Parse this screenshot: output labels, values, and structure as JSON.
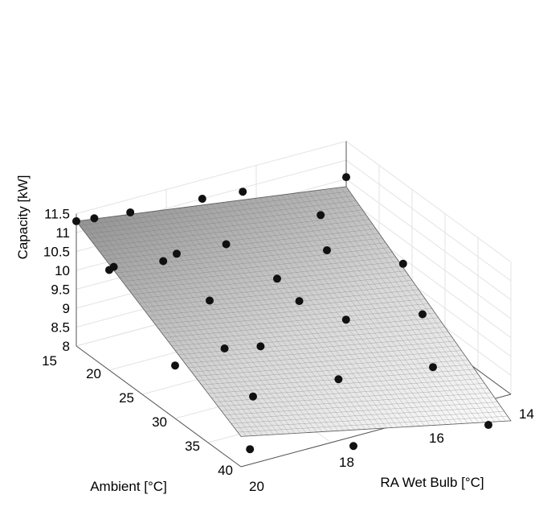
{
  "chart_data": {
    "type": "surface3d",
    "title": "",
    "zlabel": "Capacity [kW]",
    "ylabel": "Ambient [°C]",
    "xlabel": "RA Wet Bulb [°C]",
    "xlim": [
      14,
      20
    ],
    "ylim": [
      15,
      40
    ],
    "zlim": [
      8,
      11.5
    ],
    "xticks": [
      "14",
      "16",
      "18",
      "20"
    ],
    "yticks": [
      "15",
      "20",
      "25",
      "30",
      "35",
      "40"
    ],
    "zticks": [
      "8",
      "8.5",
      "9",
      "9.5",
      "10",
      "10.5",
      "11",
      "11.5"
    ],
    "grid": true,
    "surface": {
      "description_free": true,
      "corners": [
        {
          "wb": 14,
          "amb": 15,
          "capacity": 10.3
        },
        {
          "wb": 20,
          "amb": 15,
          "capacity": 11.3
        },
        {
          "wb": 14,
          "amb": 40,
          "capacity": 7.3
        },
        {
          "wb": 20,
          "amb": 40,
          "capacity": 8.8
        }
      ],
      "color_high": "#8a8a8a",
      "color_low": "#ffffff"
    },
    "points": [
      {
        "wb": 20.0,
        "amb": 15.0,
        "capacity": 11.3
      },
      {
        "wb": 19.6,
        "amb": 15.0,
        "capacity": 11.25
      },
      {
        "wb": 19.9,
        "amb": 20.0,
        "capacity": 10.7
      },
      {
        "wb": 20.0,
        "amb": 20.0,
        "capacity": 10.65
      },
      {
        "wb": 18.8,
        "amb": 15.0,
        "capacity": 11.15
      },
      {
        "wb": 18.5,
        "amb": 20.0,
        "capacity": 10.6
      },
      {
        "wb": 18.8,
        "amb": 20.0,
        "capacity": 10.5
      },
      {
        "wb": 17.2,
        "amb": 15.0,
        "capacity": 11.0
      },
      {
        "wb": 16.3,
        "amb": 15.0,
        "capacity": 10.9
      },
      {
        "wb": 17.4,
        "amb": 20.0,
        "capacity": 10.5
      },
      {
        "wb": 18.5,
        "amb": 25.0,
        "capacity": 10.0
      },
      {
        "wb": 18.9,
        "amb": 30.0,
        "capacity": 9.5
      },
      {
        "wb": 20.0,
        "amb": 30.0,
        "capacity": 9.4
      },
      {
        "wb": 17.0,
        "amb": 25.0,
        "capacity": 10.1
      },
      {
        "wb": 15.3,
        "amb": 20.0,
        "capacity": 10.6
      },
      {
        "wb": 14.0,
        "amb": 15.0,
        "capacity": 10.55
      },
      {
        "wb": 14.2,
        "amb": 25.0,
        "capacity": 9.6
      },
      {
        "wb": 14.5,
        "amb": 30.0,
        "capacity": 9.0
      },
      {
        "wb": 16.2,
        "amb": 30.0,
        "capacity": 9.4
      },
      {
        "wb": 18.1,
        "amb": 30.0,
        "capacity": 9.3
      },
      {
        "wb": 19.0,
        "amb": 35.0,
        "capacity": 8.9
      },
      {
        "wb": 17.1,
        "amb": 35.0,
        "capacity": 8.75
      },
      {
        "wb": 15.0,
        "amb": 35.0,
        "capacity": 8.4
      },
      {
        "wb": 19.8,
        "amb": 40.0,
        "capacity": 8.4
      },
      {
        "wb": 17.5,
        "amb": 40.0,
        "capacity": 7.75
      },
      {
        "wb": 14.5,
        "amb": 40.0,
        "capacity": 7.35
      },
      {
        "wb": 16.8,
        "amb": 27.0,
        "capacity": 9.7
      },
      {
        "wb": 15.6,
        "amb": 23.0,
        "capacity": 10.15
      }
    ]
  }
}
